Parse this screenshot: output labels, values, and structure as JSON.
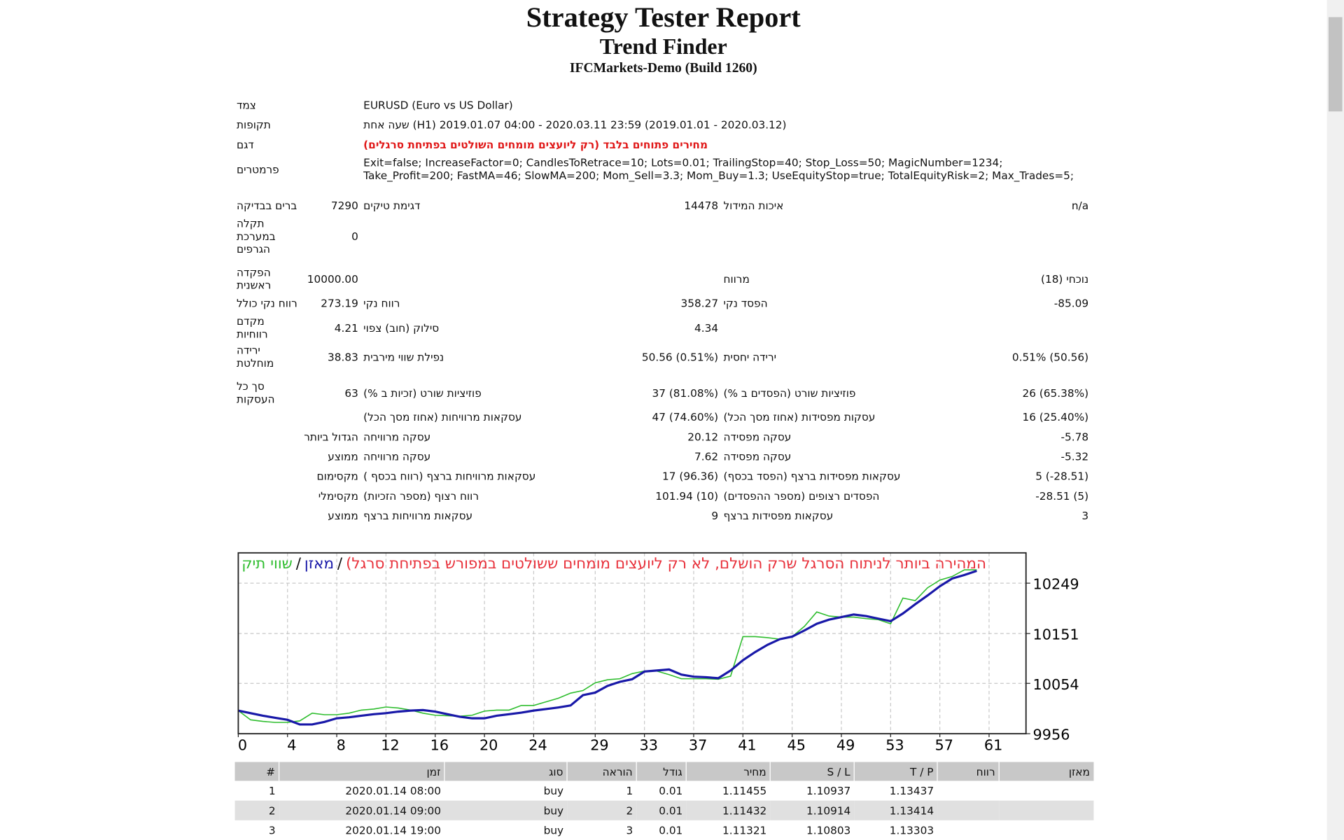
{
  "header": {
    "title": "Strategy Tester Report",
    "subtitle": "Trend Finder",
    "server": "IFCMarkets-Demo (Build 1260)"
  },
  "info": [
    {
      "label": "צמד",
      "value": "EURUSD (Euro vs US Dollar)"
    },
    {
      "label": "תקופות",
      "value": "שעה אחת (H1) 2019.01.07 04:00 - 2020.03.11 23:59 (2019.01.01 - 2020.03.12)"
    },
    {
      "label": "דגם",
      "value": "מחירים פתוחים בלבד (רק ליועצים מומחים השולטים בפתיחת סרגלים)"
    },
    {
      "label": "פרמטרים",
      "value": "Exit=false; IncreaseFactor=0; CandlesToRetrace=10; Lots=0.01; TrailingStop=40; Stop_Loss=50; MagicNumber=1234; Take_Profit=200; FastMA=46; SlowMA=200; Mom_Sell=3.3; Mom_Buy=1.3; UseEquityStop=true; TotalEquityRisk=2; Max_Trades=5;"
    }
  ],
  "stats": [
    {
      "l1": "ברים בבדיקה",
      "v1": "7290",
      "l2": "דגימת טיקים",
      "v2": "14478",
      "l3": "איכות המידול",
      "v3": "n/a"
    },
    {
      "l1": "תקלה במערכת הגרפים",
      "v1": "0"
    },
    {
      "l1": "הפקדה ראשנית",
      "v1": "10000.00",
      "l3": "מרווח",
      "v3": "נוכחי (18)"
    },
    {
      "l1": "רווח נקי כולל",
      "v1": "273.19",
      "l2": "רווח נקי",
      "v2": "358.27",
      "l3": "הפסד נקי",
      "v3": "-85.09"
    },
    {
      "l1": "מקדם רווחיות",
      "v1": "4.21",
      "l2": "סילוק (חוב) צפוי",
      "v2": "4.34"
    },
    {
      "l1": "ירידה מוחלטת",
      "v1": "38.83",
      "l2": "נפילת שווי מירבית",
      "v2": "50.56 (0.51%)",
      "l3": "ירידה יחסית",
      "v3": "0.51% (50.56)"
    },
    {
      "l1": "סך כל העסקות",
      "v1": "63",
      "l2": "פוזיציות שורט (זכיות ב %)",
      "v2": "37 (81.08%)",
      "l3": "פוזיציות שורט (הפסדים ב %)",
      "v3": "26 (65.38%)"
    },
    {
      "l2": "עסקאות מרוויחות (אחוז מסך הכל)",
      "v2": "47 (74.60%)",
      "l3": "עסקות מפסידות (אחוז מסך הכל)",
      "v3": "16 (25.40%)"
    },
    {
      "group": "הגדול ביותר",
      "l2": "עסקה מרוויחה",
      "v2": "20.12",
      "l3": "עסקה מפסידה",
      "v3": "-5.78"
    },
    {
      "group": "ממוצע",
      "l2": "עסקה מרוויחה",
      "v2": "7.62",
      "l3": "עסקה מפסידה",
      "v3": "-5.32"
    },
    {
      "group": "מקסימום",
      "l2": "עסקאות מרוויחות ברצף (רווח בכסף )",
      "v2": "17 (96.36)",
      "l3": "עסקאות מפסידות ברצף (הפסד בכסף)",
      "v3": "5 (-28.51)"
    },
    {
      "group": "מקסימלי",
      "l2": "רווח רצוף (מספר הזכיות)",
      "v2": "101.94 (10)",
      "l3": "הפסדים רצופים (מספר ההפסדים)",
      "v3": "-28.51 (5)"
    },
    {
      "group": "ממוצע",
      "l2": "עסקאות מרוויחות ברצף",
      "v2": "9",
      "l3": "עסקאות מפסידות ברצף",
      "v3": "3"
    }
  ],
  "chart": {
    "type": "line",
    "legend_note": "המהירה ביותר לניתוח הסרגל שרק הושלם, לא רק ליועצים מומחים ששולטים במפורש בפתיחת סרגל)",
    "legend_separator": "/",
    "series": [
      {
        "name": "מאזן",
        "color": "#1818a8",
        "values": [
          10001,
          9996,
          9991,
          9987,
          9983,
          9974,
          9974,
          9979,
          9986,
          9988,
          9991,
          9994,
          9996,
          9999,
          10001,
          10002,
          9999,
          9994,
          9989,
          9986,
          9986,
          9991,
          9994,
          9997,
          10001,
          10004,
          10007,
          10011,
          10031,
          10036,
          10049,
          10057,
          10062,
          10077,
          10079,
          10081,
          10071,
          10067,
          10066,
          10064,
          10079,
          10099,
          10115,
          10129,
          10140,
          10145,
          10157,
          10170,
          10178,
          10183,
          10188,
          10185,
          10180,
          10175,
          10190,
          10208,
          10225,
          10243,
          10258,
          10265,
          10273
        ]
      },
      {
        "name": "שווי תיק",
        "color": "#2ebd2e",
        "values": [
          10001,
          9983,
          9980,
          9978,
          9978,
          9981,
          9996,
          9993,
          9993,
          9996,
          10002,
          10004,
          10008,
          10006,
          10002,
          9996,
          9992,
          9991,
          9990,
          9992,
          10000,
          10002,
          10002,
          10011,
          10011,
          10018,
          10025,
          10035,
          10040,
          10055,
          10061,
          10063,
          10073,
          10078,
          10078,
          10071,
          10063,
          10063,
          10063,
          10062,
          10068,
          10145,
          10145,
          10143,
          10140,
          10145,
          10165,
          10193,
          10185,
          10183,
          10183,
          10180,
          10178,
          10170,
          10220,
          10215,
          10240,
          10255,
          10262,
          10275,
          10275
        ]
      }
    ],
    "xlim": [
      0,
      64
    ],
    "xticks": [
      0,
      4,
      8,
      12,
      16,
      20,
      24,
      29,
      33,
      37,
      41,
      45,
      49,
      53,
      57,
      61
    ],
    "ylim": [
      9956,
      10308
    ],
    "yticks": [
      9956,
      10054,
      10151,
      10249
    ],
    "grid": true
  },
  "trades": {
    "headers": [
      "#",
      "זמן",
      "סוג",
      "הוראה",
      "גודל",
      "מחיר",
      "S / L",
      "T / P",
      "רווח",
      "מאזן"
    ],
    "rows": [
      [
        "1",
        "2020.01.14 08:00",
        "buy",
        "1",
        "0.01",
        "1.11455",
        "1.10937",
        "1.13437"
      ],
      [
        "2",
        "2020.01.14 09:00",
        "buy",
        "2",
        "0.01",
        "1.11432",
        "1.10914",
        "1.13414"
      ],
      [
        "3",
        "2020.01.14 19:00",
        "buy",
        "3",
        "0.01",
        "1.11321",
        "1.10803",
        "1.13303"
      ]
    ]
  }
}
